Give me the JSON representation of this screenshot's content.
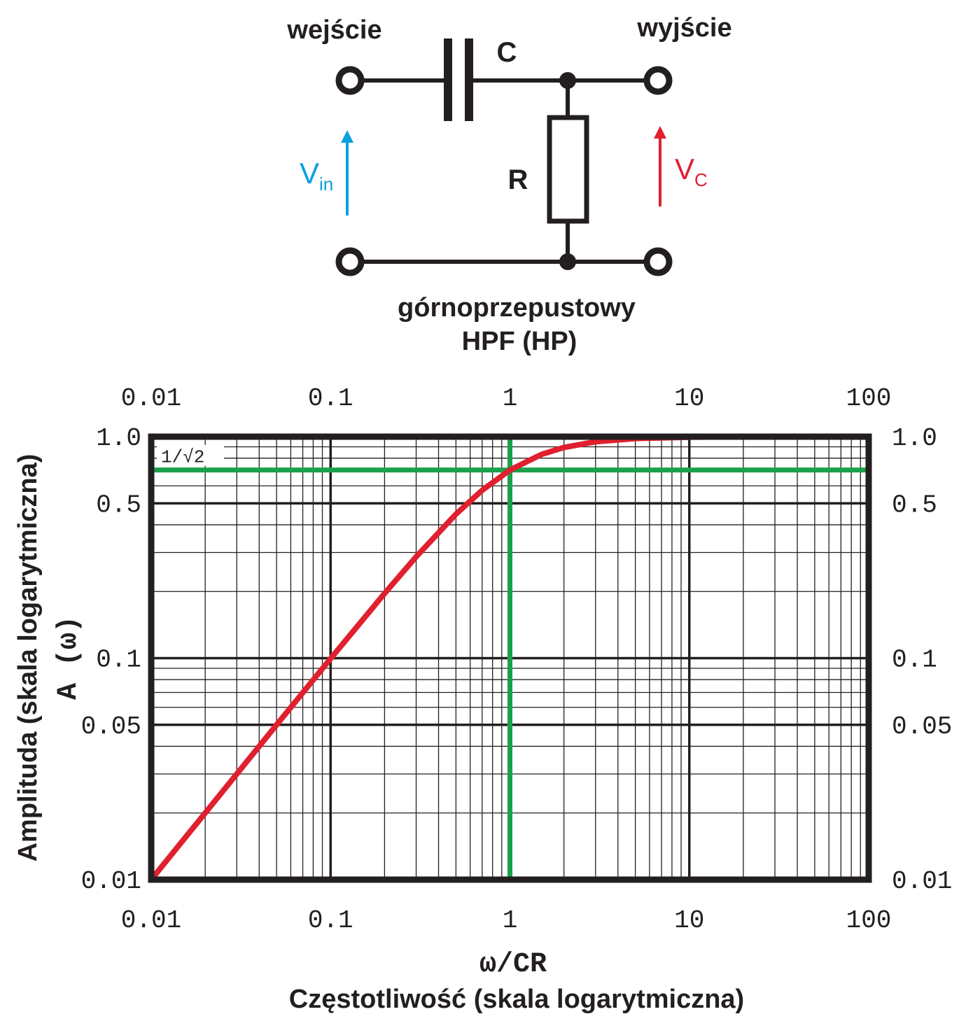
{
  "circuit": {
    "input_label": "wejście",
    "output_label": "wyjście",
    "capacitor_label": "C",
    "resistor_label": "R",
    "vin_main": "V",
    "vin_sub": "in",
    "vc_main": "V",
    "vc_sub": "C",
    "caption_line1": "górnoprzepustowy",
    "caption_line2": "HPF (HP)",
    "colors": {
      "wire": "#231f20",
      "vin": "#0aa0e0",
      "vc": "#e0202e"
    }
  },
  "chart_data": {
    "type": "line",
    "x_scale": "log",
    "y_scale": "log",
    "xlim": [
      0.01,
      100
    ],
    "ylim": [
      0.01,
      1.0
    ],
    "grid": true,
    "x_ticks": [
      0.01,
      0.1,
      1,
      10,
      100
    ],
    "x_tick_labels": [
      "0.01",
      "0.1",
      "1",
      "10",
      "100"
    ],
    "y_ticks": [
      0.01,
      0.05,
      0.1,
      0.5,
      1.0
    ],
    "y_tick_labels": [
      "0.01",
      "0.05",
      "0.1",
      "0.5",
      "1.0"
    ],
    "xlabel_symbol": "ω/CR",
    "xlabel": "Częstotliwość (skala logarytmiczna)",
    "ylabel_symbol": "A (ω)",
    "ylabel": "Amplituda (skala logarytmicznа)",
    "reference_level_label": "1/√2",
    "series": [
      {
        "color": "#e0202e",
        "x": [
          0.01,
          0.02,
          0.05,
          0.1,
          0.2,
          0.3,
          0.5,
          0.7,
          1,
          1.5,
          2,
          3,
          5,
          10,
          20,
          50,
          100
        ],
        "y": [
          0.01,
          0.02,
          0.05,
          0.0995,
          0.196,
          0.287,
          0.447,
          0.573,
          0.707,
          0.832,
          0.894,
          0.949,
          0.981,
          0.995,
          0.999,
          1.0,
          1.0
        ]
      }
    ],
    "reference_lines": [
      {
        "axis": "y",
        "value": 1.0,
        "color": "#0aa0e0"
      },
      {
        "axis": "y",
        "value": 0.707,
        "color": "#1aa14a"
      },
      {
        "axis": "x",
        "value": 1,
        "color": "#1aa14a"
      }
    ]
  }
}
